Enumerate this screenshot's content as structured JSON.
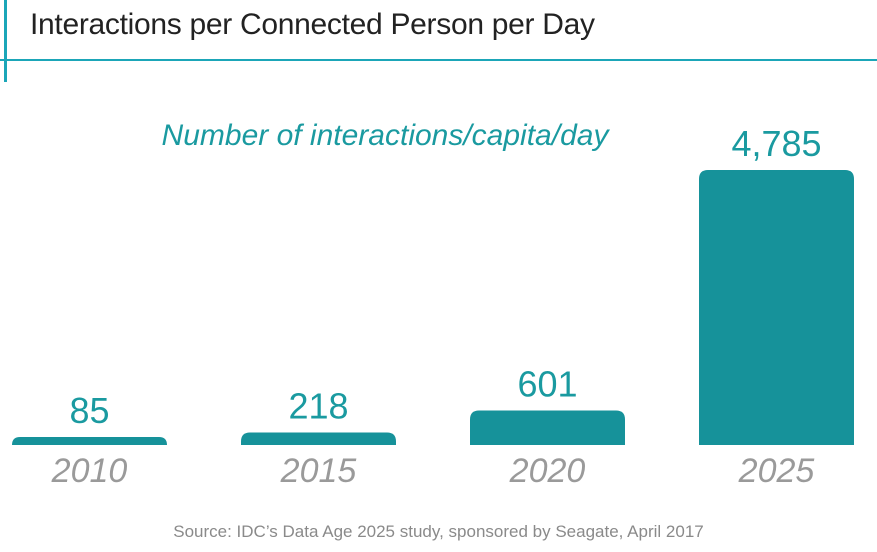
{
  "title": "Interactions per Connected Person per Day",
  "source": "Source: IDC’s Data Age 2025 study, sponsored by Seagate, April 2017",
  "colors": {
    "accent": "#1ba6b8",
    "bar": "#16929a",
    "value_label": "#1a9aa0",
    "category_label": "#9a9a9a",
    "title": "#222222"
  },
  "chart_data": {
    "type": "bar",
    "title": "Interactions per Connected Person per Day",
    "subtitle": "Number of interactions/capita/day",
    "categories": [
      "2010",
      "2015",
      "2020",
      "2025"
    ],
    "values": [
      85,
      218,
      601,
      4785
    ],
    "value_labels": [
      "85",
      "218",
      "601",
      "4,785"
    ],
    "xlabel": "",
    "ylabel": "",
    "ylim": [
      0,
      4785
    ],
    "grid": false,
    "legend": "none"
  }
}
